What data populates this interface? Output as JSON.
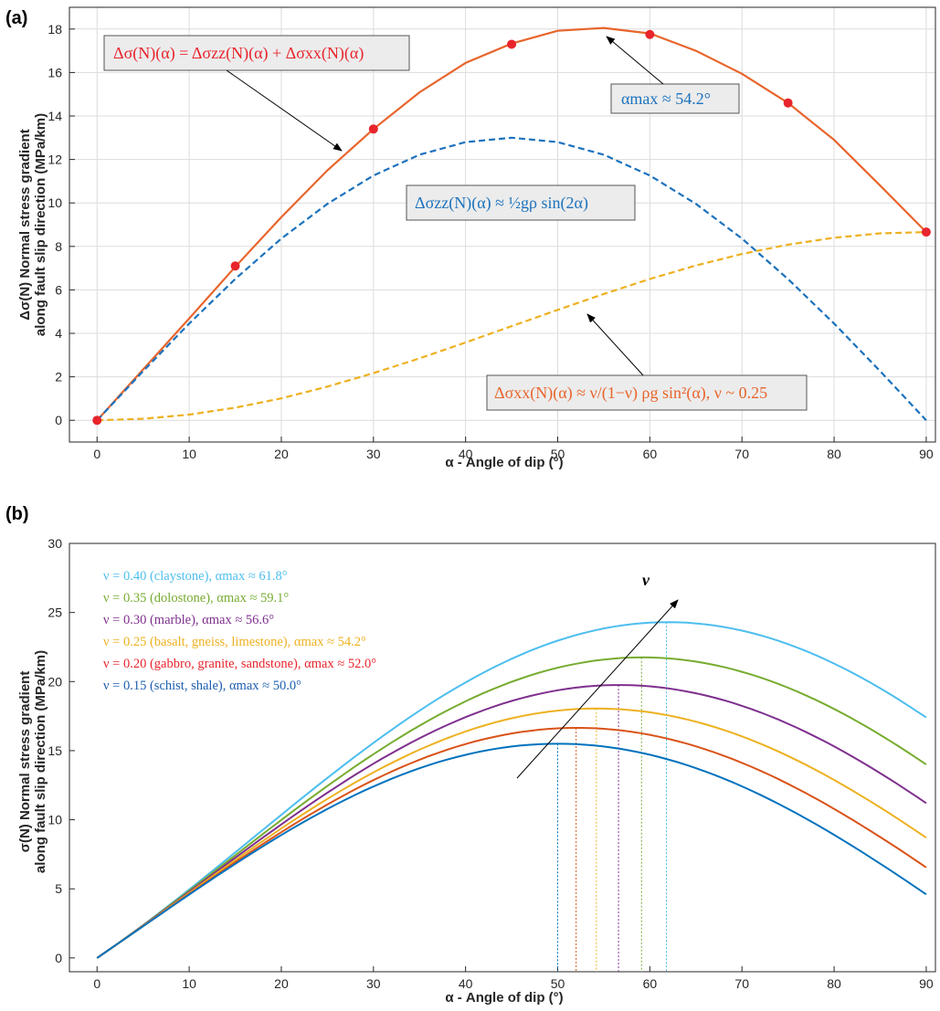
{
  "chart_data": [
    {
      "panel": "(a)",
      "type": "line",
      "xlabel": "α - Angle of dip (°)",
      "ylabel_line1": "Δσ(N) Normal stress gradient",
      "ylabel_line2": "along fault slip direction (MPa/km)",
      "xlim": [
        -3,
        91
      ],
      "ylim": [
        -1,
        19
      ],
      "xticks": [
        0,
        10,
        20,
        30,
        40,
        50,
        60,
        70,
        80,
        90
      ],
      "yticks": [
        0,
        2,
        4,
        6,
        8,
        10,
        12,
        14,
        16,
        18
      ],
      "grid": true,
      "series": [
        {
          "name": "Δσ(N)(α) = Δσzz(N)(α) + Δσxx(N)(α)",
          "color": "#E8652C",
          "style": "solid",
          "x": [
            0,
            5,
            10,
            15,
            20,
            25,
            30,
            35,
            40,
            45,
            50,
            55,
            60,
            65,
            70,
            75,
            80,
            85,
            90
          ],
          "y": [
            0,
            2.34,
            4.68,
            7.06,
            9.35,
            11.5,
            13.4,
            15.09,
            16.44,
            17.33,
            17.92,
            18.05,
            17.8,
            17.0,
            15.94,
            14.6,
            12.9,
            10.8,
            8.66
          ]
        },
        {
          "name": "Δσzz(N)(α) ≈ ½gρsin(2α)",
          "color": "#1C72BD",
          "style": "dashed",
          "x": [
            0,
            5,
            10,
            15,
            20,
            25,
            30,
            35,
            40,
            45,
            50,
            55,
            60,
            65,
            70,
            75,
            80,
            85,
            90
          ],
          "y": [
            0,
            2.26,
            4.45,
            6.5,
            8.36,
            9.96,
            11.26,
            12.22,
            12.8,
            13.0,
            12.8,
            12.22,
            11.26,
            9.96,
            8.36,
            6.5,
            4.45,
            2.26,
            0
          ]
        },
        {
          "name": "Δσxx(N)(α) ≈ ν/(1−ν)ρg sin²(α), ν ~ 0.25",
          "color": "#EDB120",
          "style": "dashed",
          "x": [
            0,
            5,
            10,
            15,
            20,
            25,
            30,
            35,
            40,
            45,
            50,
            55,
            60,
            65,
            70,
            75,
            80,
            85,
            90
          ],
          "y": [
            0,
            0.07,
            0.26,
            0.58,
            1.01,
            1.55,
            2.17,
            2.85,
            3.58,
            4.33,
            5.08,
            5.81,
            6.5,
            7.12,
            7.65,
            8.08,
            8.4,
            8.6,
            8.66
          ]
        }
      ],
      "markers": {
        "color": "#E8242C",
        "x": [
          0,
          15,
          30,
          45,
          60,
          75,
          90
        ],
        "y": [
          0,
          7.1,
          13.4,
          17.3,
          17.75,
          14.6,
          8.66
        ]
      },
      "annotations": {
        "total_label": "Δσ(N)(α) = Δσzz(N)(α) + Δσxx(N)(α)",
        "max_label": "αmax ≈ 54.2°",
        "zz_label": "Δσzz(N)(α) ≈ ½gρ sin(2α)",
        "xx_label": "Δσxx(N)(α) ≈ ν/(1−ν) ρg sin²(α), ν ~ 0.25"
      }
    },
    {
      "panel": "(b)",
      "type": "line",
      "xlabel": "α - Angle of dip (°)",
      "ylabel_line1": "σ(N) Normal stress gradient",
      "ylabel_line2": "along fault slip direction (MPa/km)",
      "xlim": [
        -3,
        91
      ],
      "ylim": [
        -1,
        30
      ],
      "xticks": [
        0,
        10,
        20,
        30,
        40,
        50,
        60,
        70,
        80,
        90
      ],
      "yticks": [
        0,
        5,
        10,
        15,
        20,
        25,
        30
      ],
      "grid": false,
      "nu_arrow_label": "ν",
      "series": [
        {
          "name": "ν = 0.40 (claystone), αmax ≈ 61.8°",
          "color": "#4DBEEE",
          "peak": 24.3,
          "end": 17.4,
          "alpha_max": 61.8
        },
        {
          "name": "ν = 0.35 (dolostone), αmax ≈ 59.1°",
          "color": "#77AC30",
          "peak": 21.75,
          "end": 14.0,
          "alpha_max": 59.1
        },
        {
          "name": "ν = 0.30 (marble), αmax ≈ 56.6°",
          "color": "#7E2F8E",
          "peak": 19.75,
          "end": 11.2,
          "alpha_max": 56.6
        },
        {
          "name": "ν = 0.25 (basalt, gneiss, limestone), αmax ≈ 54.2°",
          "color": "#EDB120",
          "peak": 18.05,
          "end": 8.7,
          "alpha_max": 54.2
        },
        {
          "name": "ν = 0.20 (gabbro, granite, sandstone), αmax ≈ 52.0°",
          "color": "#D95319",
          "peak": 16.65,
          "end": 6.55,
          "alpha_max": 52.0
        },
        {
          "name": "ν = 0.15 (schist, shale), αmax ≈ 50.0°",
          "color": "#0072BD",
          "peak": 15.5,
          "end": 4.6,
          "alpha_max": 50.0
        }
      ],
      "legend_colors": [
        "#4DBEEE",
        "#77AC30",
        "#7E2F8E",
        "#EDB120",
        "#E8242C",
        "#1C5FB0"
      ]
    }
  ]
}
